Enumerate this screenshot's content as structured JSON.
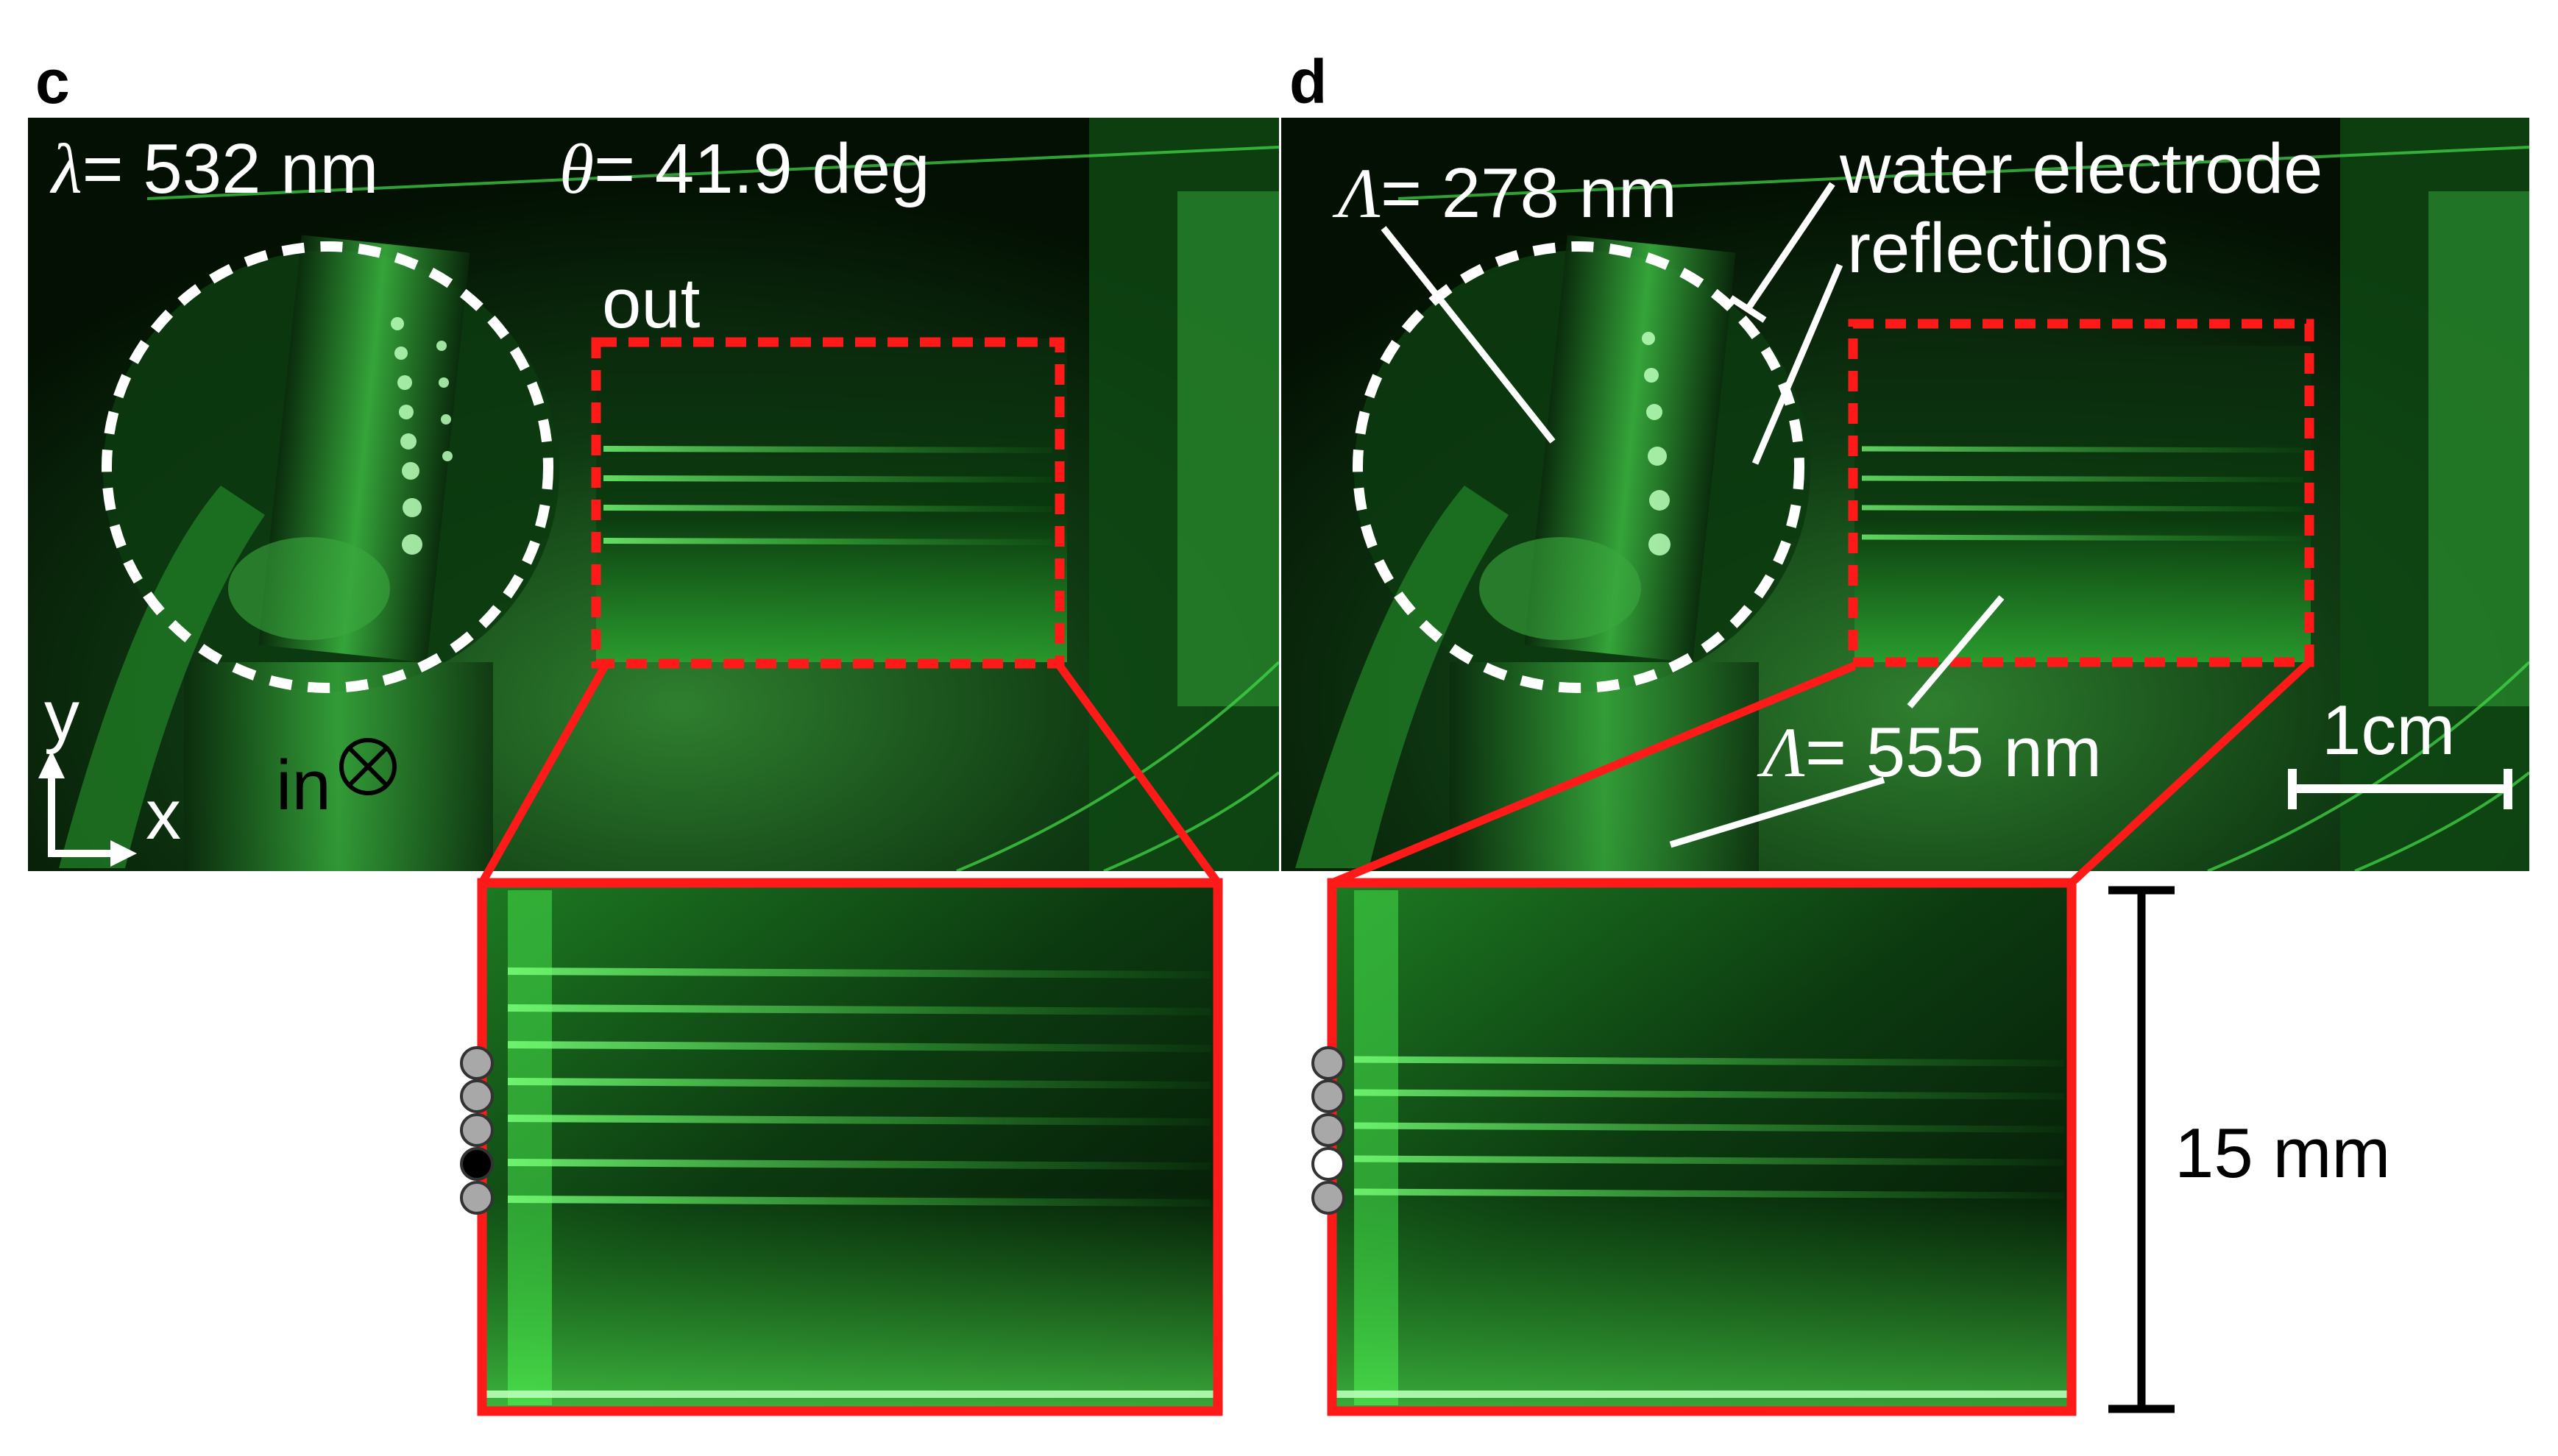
{
  "panels": {
    "c": {
      "letter": "c",
      "wavelength_symbol": "λ",
      "wavelength_text": "= 532 nm",
      "angle_symbol": "θ",
      "angle_text": "= 41.9 deg",
      "out_label": "out",
      "in_label": "in",
      "axis_y": "y",
      "axis_x": "x"
    },
    "d": {
      "letter": "d",
      "period_symbol": "Λ",
      "period1_text": "= 278 nm",
      "period2_text": "= 555 nm",
      "annotation_line1": "water electrode",
      "annotation_line2": "reflections",
      "scalebar_label": "1cm"
    }
  },
  "zoom": {
    "height_label": "15 mm",
    "markers_c": [
      "gray",
      "gray",
      "gray",
      "black",
      "gray"
    ],
    "markers_d": [
      "gray",
      "gray",
      "gray",
      "white",
      "gray"
    ]
  },
  "colors": {
    "highlight": "#ff1a1a",
    "laser_green": "#33e633",
    "background": "#020a02"
  }
}
